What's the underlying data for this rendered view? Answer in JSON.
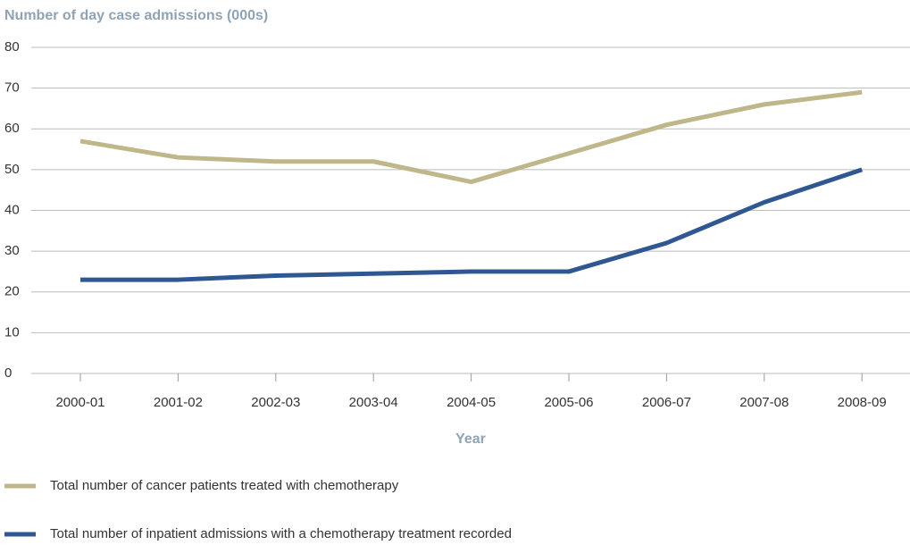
{
  "chart_data": {
    "type": "line",
    "title": "Number of day case admissions (000s)",
    "x_label": "Year",
    "categories": [
      "2000-01",
      "2001-02",
      "2002-03",
      "2003-04",
      "2004-05",
      "2005-06",
      "2006-07",
      "2007-08",
      "2008-09"
    ],
    "series": [
      {
        "name": "Total number of cancer patients treated with chemotherapy",
        "color": "#bfb68a",
        "values": [
          57,
          53,
          52,
          52,
          47,
          54,
          61,
          66,
          69
        ]
      },
      {
        "name": "Total number of inpatient admissions with a chemotherapy treatment recorded",
        "color": "#2f5893",
        "values": [
          23,
          23,
          24,
          24.5,
          25,
          25,
          32,
          42,
          50
        ]
      }
    ],
    "ylim": [
      0,
      80
    ],
    "yticks": [
      0,
      10,
      20,
      30,
      40,
      50,
      60,
      70,
      80
    ],
    "grid": true
  }
}
